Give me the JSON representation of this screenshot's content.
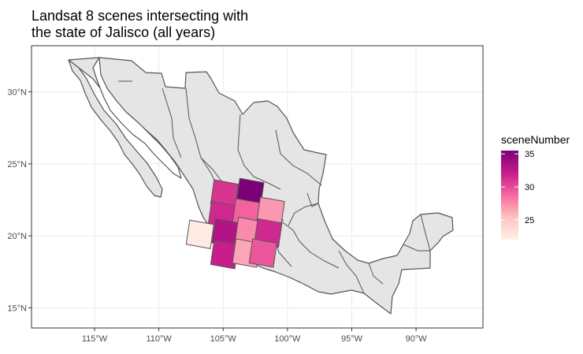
{
  "title_line1": "Landsat 8 scenes intersecting with",
  "title_line2": "the state of Jalisco (all years)",
  "chart_data": {
    "type": "map",
    "region": "Mexico",
    "x_ticks": [
      {
        "value": -115,
        "label": "115°W"
      },
      {
        "value": -110,
        "label": "110°W"
      },
      {
        "value": -105,
        "label": "105°W"
      },
      {
        "value": -100,
        "label": "100°W"
      },
      {
        "value": -95,
        "label": "95°W"
      },
      {
        "value": -90,
        "label": "90°W"
      }
    ],
    "y_ticks": [
      {
        "value": 15,
        "label": "15°N"
      },
      {
        "value": 20,
        "label": "20°N"
      },
      {
        "value": 25,
        "label": "25°N"
      },
      {
        "value": 30,
        "label": "30°N"
      }
    ],
    "xlim": [
      -119.9,
      -84.8
    ],
    "ylim": [
      13.6,
      33.2
    ],
    "grid": true,
    "legend": {
      "title": "sceneNumber",
      "position": "right",
      "min": 22,
      "max": 35.5,
      "ticks": [
        25,
        30,
        35
      ],
      "color_low": "#fff0ea",
      "color_high": "#7a0177"
    },
    "scenes": [
      {
        "lon": -104.9,
        "lat": 22.9,
        "value": 31
      },
      {
        "lon": -102.9,
        "lat": 23.0,
        "value": 35.5
      },
      {
        "lon": -105.1,
        "lat": 21.4,
        "value": 31.5
      },
      {
        "lon": -103.2,
        "lat": 21.6,
        "value": 29
      },
      {
        "lon": -101.3,
        "lat": 21.7,
        "value": 27
      },
      {
        "lon": -106.8,
        "lat": 20.1,
        "value": 22.5
      },
      {
        "lon": -104.8,
        "lat": 20.2,
        "value": 33
      },
      {
        "lon": -103.0,
        "lat": 20.3,
        "value": 27.5
      },
      {
        "lon": -101.5,
        "lat": 20.2,
        "value": 31.5
      },
      {
        "lon": -104.9,
        "lat": 18.7,
        "value": 32
      },
      {
        "lon": -103.2,
        "lat": 18.8,
        "value": 26.5
      },
      {
        "lon": -101.9,
        "lat": 18.8,
        "value": 29.5
      }
    ]
  }
}
